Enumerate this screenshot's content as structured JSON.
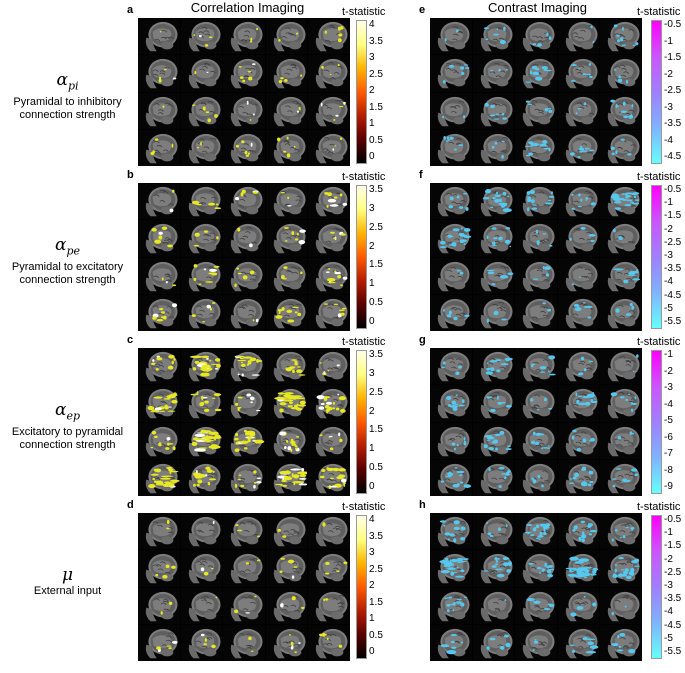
{
  "headers": {
    "left": "Correlation Imaging",
    "right": "Contrast Imaging"
  },
  "colorbar_title": "t-statistic",
  "colors": {
    "hot_bar": [
      "#000000",
      "#5a0000",
      "#b41e00",
      "#ff5a00",
      "#ffb400",
      "#ffff80",
      "#ffffe8"
    ],
    "cool_bar": [
      "#66ffff",
      "#7fb3ff",
      "#9f7fff",
      "#cc55ff",
      "#ff00ff"
    ],
    "hot_activation": "#e8e820",
    "hot_activation_white": "#ffffff",
    "cool_activation": "#55c8f0"
  },
  "rows": [
    {
      "symbol_base": "α",
      "symbol_sub": "pi",
      "description": "Pyramidal to inhibitory connection strength",
      "left_panel": {
        "letter": "a",
        "ticks": [
          "4",
          "3.5",
          "3",
          "2.5",
          "2",
          "1.5",
          "1",
          "0.5",
          "0"
        ]
      },
      "right_panel": {
        "letter": "e",
        "ticks": [
          "-0.5",
          "-1",
          "-1.5",
          "-2",
          "-2.5",
          "-3",
          "-3.5",
          "-4",
          "-4.5"
        ]
      }
    },
    {
      "symbol_base": "α",
      "symbol_sub": "pe",
      "description": "Pyramidal to excitatory connection strength",
      "left_panel": {
        "letter": "b",
        "ticks": [
          "3.5",
          "3",
          "2.5",
          "2",
          "1.5",
          "1",
          "0.5",
          "0"
        ]
      },
      "right_panel": {
        "letter": "f",
        "ticks": [
          "-0.5",
          "-1",
          "-1.5",
          "-2",
          "-2.5",
          "-3",
          "-3.5",
          "-4",
          "-4.5",
          "-5",
          "-5.5"
        ]
      }
    },
    {
      "symbol_base": "α",
      "symbol_sub": "ep",
      "description": "Excitatory to pyramidal connection strength",
      "left_panel": {
        "letter": "c",
        "ticks": [
          "3.5",
          "3",
          "2.5",
          "2",
          "1.5",
          "1",
          "0.5",
          "0"
        ]
      },
      "right_panel": {
        "letter": "g",
        "ticks": [
          "-1",
          "-2",
          "-3",
          "-4",
          "-5",
          "-6",
          "-7",
          "-8",
          "-9"
        ]
      }
    },
    {
      "symbol_base": "μ",
      "symbol_sub": "",
      "description": "External input",
      "left_panel": {
        "letter": "d",
        "ticks": [
          "4",
          "3.5",
          "3",
          "2.5",
          "2",
          "1.5",
          "1",
          "0.5",
          "0"
        ]
      },
      "right_panel": {
        "letter": "h",
        "ticks": [
          "-0.5",
          "-1",
          "-1.5",
          "-2",
          "-2.5",
          "-3",
          "-3.5",
          "-4",
          "-4.5",
          "-5",
          "-5.5"
        ]
      }
    }
  ]
}
